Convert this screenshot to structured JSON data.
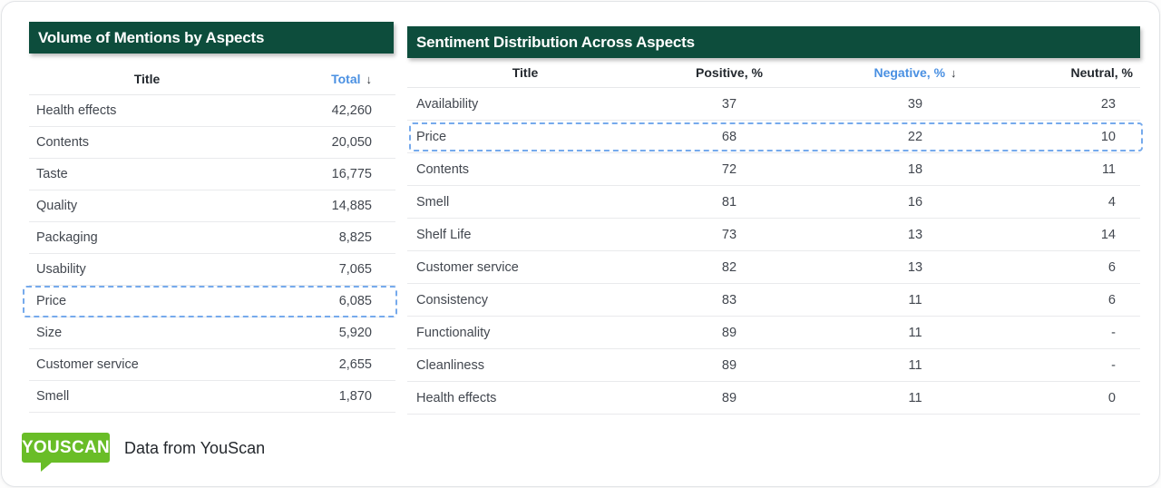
{
  "ui": {
    "sort_arrow": "↓",
    "accent_blue": "#4a90e2",
    "banner_green": "#0d4d3c",
    "highlight_border": "#76aaec",
    "logo_green": "#69bd27"
  },
  "footer": {
    "logo_text": "YOUSCAN",
    "caption": "Data from YouScan"
  },
  "tables": [
    {
      "title": "Volume of Mentions by Aspects",
      "columns": [
        {
          "label": "Title",
          "sortable": false,
          "active_sort": false
        },
        {
          "label": "Total",
          "sortable": true,
          "active_sort": true
        }
      ],
      "fields": [
        "title",
        "total"
      ],
      "highlighted_row": "Price",
      "rows": [
        {
          "title": "Health effects",
          "total": "42,260"
        },
        {
          "title": "Contents",
          "total": "20,050"
        },
        {
          "title": "Taste",
          "total": "16,775"
        },
        {
          "title": "Quality",
          "total": "14,885"
        },
        {
          "title": "Packaging",
          "total": "8,825"
        },
        {
          "title": "Usability",
          "total": "7,065"
        },
        {
          "title": "Price",
          "total": "6,085"
        },
        {
          "title": "Size",
          "total": "5,920"
        },
        {
          "title": "Customer service",
          "total": "2,655"
        },
        {
          "title": "Smell",
          "total": "1,870"
        }
      ]
    },
    {
      "title": "Sentiment Distribution Across Aspects",
      "columns": [
        {
          "label": "Title",
          "sortable": false,
          "active_sort": false
        },
        {
          "label": "Positive, %",
          "sortable": true,
          "active_sort": false
        },
        {
          "label": "Negative, %",
          "sortable": true,
          "active_sort": true
        },
        {
          "label": "Neutral, %",
          "sortable": true,
          "active_sort": false
        }
      ],
      "fields": [
        "title",
        "positive",
        "negative",
        "neutral"
      ],
      "highlighted_row": "Price",
      "rows": [
        {
          "title": "Availability",
          "positive": "37",
          "negative": "39",
          "neutral": "23"
        },
        {
          "title": "Price",
          "positive": "68",
          "negative": "22",
          "neutral": "10"
        },
        {
          "title": "Contents",
          "positive": "72",
          "negative": "18",
          "neutral": "11"
        },
        {
          "title": "Smell",
          "positive": "81",
          "negative": "16",
          "neutral": "4"
        },
        {
          "title": "Shelf Life",
          "positive": "73",
          "negative": "13",
          "neutral": "14"
        },
        {
          "title": "Customer service",
          "positive": "82",
          "negative": "13",
          "neutral": "6"
        },
        {
          "title": "Consistency",
          "positive": "83",
          "negative": "11",
          "neutral": "6"
        },
        {
          "title": "Functionality",
          "positive": "89",
          "negative": "11",
          "neutral": "-"
        },
        {
          "title": "Cleanliness",
          "positive": "89",
          "negative": "11",
          "neutral": "-"
        },
        {
          "title": "Health effects",
          "positive": "89",
          "negative": "11",
          "neutral": "0"
        }
      ]
    }
  ],
  "chart_data": [
    {
      "type": "table",
      "title": "Volume of Mentions by Aspects",
      "columns": [
        "Title",
        "Total"
      ],
      "sorted_by": "Total",
      "sort_direction": "desc",
      "highlighted_row": "Price",
      "rows": [
        [
          "Health effects",
          42260
        ],
        [
          "Contents",
          20050
        ],
        [
          "Taste",
          16775
        ],
        [
          "Quality",
          14885
        ],
        [
          "Packaging",
          8825
        ],
        [
          "Usability",
          7065
        ],
        [
          "Price",
          6085
        ],
        [
          "Size",
          5920
        ],
        [
          "Customer service",
          2655
        ],
        [
          "Smell",
          1870
        ]
      ]
    },
    {
      "type": "table",
      "title": "Sentiment Distribution Across Aspects",
      "columns": [
        "Title",
        "Positive, %",
        "Negative, %",
        "Neutral, %"
      ],
      "sorted_by": "Negative, %",
      "sort_direction": "desc",
      "highlighted_row": "Price",
      "rows": [
        [
          "Availability",
          37,
          39,
          23
        ],
        [
          "Price",
          68,
          22,
          10
        ],
        [
          "Contents",
          72,
          18,
          11
        ],
        [
          "Smell",
          81,
          16,
          4
        ],
        [
          "Shelf Life",
          73,
          13,
          14
        ],
        [
          "Customer service",
          82,
          13,
          6
        ],
        [
          "Consistency",
          83,
          11,
          6
        ],
        [
          "Functionality",
          89,
          11,
          null
        ],
        [
          "Cleanliness",
          89,
          11,
          null
        ],
        [
          "Health effects",
          89,
          11,
          0
        ]
      ]
    }
  ]
}
